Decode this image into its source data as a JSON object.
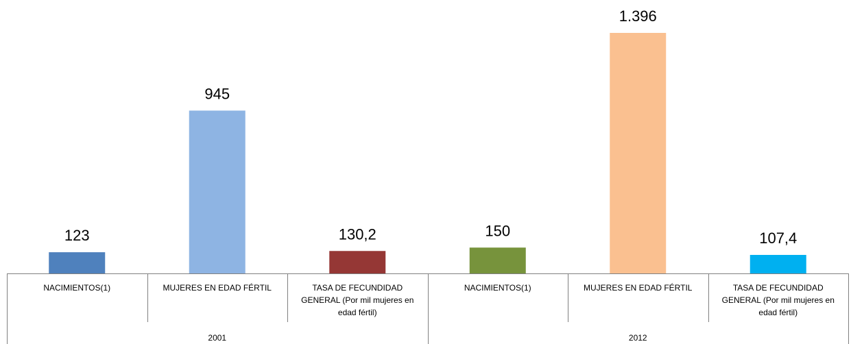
{
  "chart_data": {
    "type": "bar",
    "title": "",
    "xlabel": "",
    "ylabel": "",
    "groups": [
      "2001",
      "2012"
    ],
    "bars": [
      {
        "group": "2001",
        "category": "NACIMIENTOS(1)",
        "category_lines": [
          "NACIMIENTOS(1)"
        ],
        "value": 123,
        "label": "123",
        "color": "#4f81bd"
      },
      {
        "group": "2001",
        "category": "MUJERES EN EDAD FÉRTIL",
        "category_lines": [
          "MUJERES EN EDAD FÉRTIL"
        ],
        "value": 945,
        "label": "945",
        "color": "#8eb4e3"
      },
      {
        "group": "2001",
        "category": "TASA DE FECUNDIDAD GENERAL (Por mil mujeres en edad fértil)",
        "category_lines": [
          "TASA DE FECUNDIDAD",
          "GENERAL (Por mil mujeres en",
          "edad fértil)"
        ],
        "value": 130.2,
        "label": "130,2",
        "color": "#953735"
      },
      {
        "group": "2012",
        "category": "NACIMIENTOS(1)",
        "category_lines": [
          "NACIMIENTOS(1)"
        ],
        "value": 150,
        "label": "150",
        "color": "#77933c"
      },
      {
        "group": "2012",
        "category": "MUJERES EN EDAD FÉRTIL",
        "category_lines": [
          "MUJERES EN EDAD FÉRTIL"
        ],
        "value": 1396,
        "label": "1.396",
        "color": "#fac090"
      },
      {
        "group": "2012",
        "category": "TASA DE FECUNDIDAD GENERAL (Por mil mujeres en edad fértil)",
        "category_lines": [
          "TASA DE FECUNDIDAD",
          "GENERAL (Por mil mujeres en",
          "edad fértil)"
        ],
        "value": 107.4,
        "label": "107,4",
        "color": "#00b0f0"
      }
    ],
    "ylim": [
      0,
      1396
    ],
    "grid": false,
    "legend": "none"
  }
}
